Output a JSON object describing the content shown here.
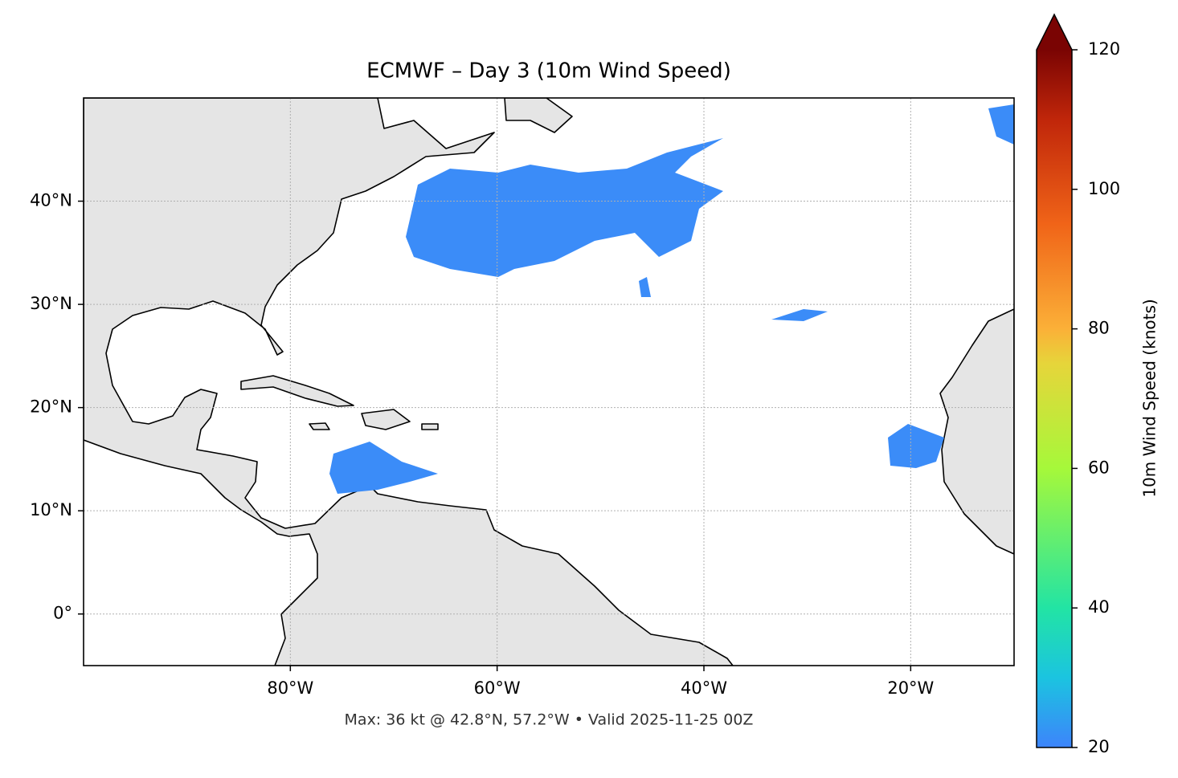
{
  "map": {
    "title": "ECMWF – Day 3 (10m Wind Speed)",
    "note": "Max: 36 kt @ 42.8°N, 57.2°W • Valid 2025-11-25 00Z",
    "xlim": [
      -100,
      -10
    ],
    "ylim": [
      -5,
      50
    ],
    "xticks": [
      {
        "value": -80,
        "label": "80°W"
      },
      {
        "value": -60,
        "label": "60°W"
      },
      {
        "value": -40,
        "label": "40°W"
      },
      {
        "value": -20,
        "label": "20°W"
      }
    ],
    "yticks": [
      {
        "value": 0,
        "label": "0°"
      },
      {
        "value": 10,
        "label": "10°N"
      },
      {
        "value": 20,
        "label": "20°N"
      },
      {
        "value": 30,
        "label": "30°N"
      },
      {
        "value": 40,
        "label": "40°N"
      }
    ],
    "grid": true,
    "colorbar": {
      "label": "10m Wind Speed (knots)",
      "lim": [
        20,
        120
      ],
      "ticks": [
        20,
        40,
        60,
        80,
        100,
        120
      ],
      "extend": "max"
    }
  }
}
